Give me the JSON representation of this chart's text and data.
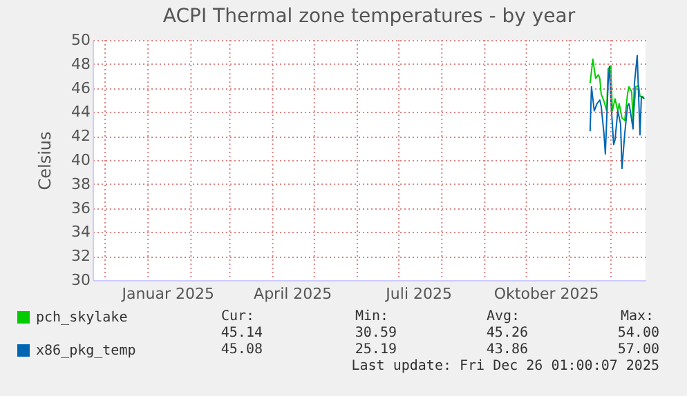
{
  "chart_data": {
    "type": "line",
    "title": "ACPI Thermal zone temperatures - by year",
    "ylabel": "Celsius",
    "xlim": [
      "2024-11-22",
      "2025-12-26"
    ],
    "xticks": [
      {
        "value": "2024-12-01",
        "label": null
      },
      {
        "value": "2025-01-01",
        "label": null
      },
      {
        "value": "2025-01-15",
        "label": "Januar 2025"
      },
      {
        "value": "2025-02-01",
        "label": null
      },
      {
        "value": "2025-03-01",
        "label": null
      },
      {
        "value": "2025-04-01",
        "label": null
      },
      {
        "value": "2025-04-15",
        "label": "April 2025"
      },
      {
        "value": "2025-05-01",
        "label": null
      },
      {
        "value": "2025-06-01",
        "label": null
      },
      {
        "value": "2025-07-01",
        "label": null
      },
      {
        "value": "2025-07-15",
        "label": "Juli 2025"
      },
      {
        "value": "2025-08-01",
        "label": null
      },
      {
        "value": "2025-09-01",
        "label": null
      },
      {
        "value": "2025-10-01",
        "label": null
      },
      {
        "value": "2025-10-15",
        "label": "Oktober 2025"
      },
      {
        "value": "2025-11-01",
        "label": null
      },
      {
        "value": "2025-12-01",
        "label": null
      }
    ],
    "ylim": [
      30,
      50
    ],
    "yticks": [
      30,
      32,
      34,
      36,
      38,
      40,
      42,
      44,
      46,
      48,
      50
    ],
    "grid": true,
    "legend": "bottom left",
    "series": [
      {
        "name": "pch_skylake",
        "color": "#00cc00",
        "x": [
          "2025-11-16",
          "2025-11-18",
          "2025-11-20",
          "2025-11-22",
          "2025-11-23",
          "2025-11-24",
          "2025-11-26",
          "2025-11-28",
          "2025-11-29",
          "2025-12-01",
          "2025-12-02",
          "2025-12-04",
          "2025-12-06",
          "2025-12-07",
          "2025-12-09",
          "2025-12-11",
          "2025-12-13",
          "2025-12-14",
          "2025-12-16",
          "2025-12-17",
          "2025-12-19",
          "2025-12-21",
          "2025-12-22",
          "2025-12-24",
          "2025-12-25"
        ],
        "values": [
          46.4,
          48.4,
          46.8,
          47.1,
          46.8,
          45.5,
          44.9,
          44.1,
          47.6,
          47.8,
          44.1,
          45.1,
          44.1,
          44.7,
          43.5,
          43.3,
          45.5,
          46.1,
          45.7,
          43.3,
          46.1,
          46.2,
          45.3,
          45.3,
          45.1
        ]
      },
      {
        "name": "x86_pkg_temp",
        "color": "#0066b3",
        "x": [
          "2025-11-16",
          "2025-11-17",
          "2025-11-19",
          "2025-11-21",
          "2025-11-23",
          "2025-11-24",
          "2025-11-26",
          "2025-11-27",
          "2025-11-29",
          "2025-11-30",
          "2025-12-01",
          "2025-12-03",
          "2025-12-04",
          "2025-12-06",
          "2025-12-08",
          "2025-12-09",
          "2025-12-11",
          "2025-12-13",
          "2025-12-14",
          "2025-12-15",
          "2025-12-17",
          "2025-12-18",
          "2025-12-20",
          "2025-12-22",
          "2025-12-23",
          "2025-12-25"
        ],
        "values": [
          42.4,
          46.1,
          44.1,
          44.7,
          45.0,
          44.5,
          42.2,
          40.5,
          46.4,
          47.8,
          44.9,
          41.3,
          41.7,
          44.1,
          43.0,
          39.3,
          42.2,
          44.5,
          44.7,
          44.1,
          42.6,
          46.4,
          48.7,
          42.1,
          45.3,
          45.1
        ]
      }
    ],
    "annotations": [
      "Cur:",
      "Min:",
      "Avg:",
      "Max:",
      "45.14",
      "30.59",
      "45.26",
      "54.00",
      "45.08",
      "25.19",
      "43.86",
      "57.00",
      "Last update: Fri Dec 26 01:00:07 2025"
    ]
  }
}
